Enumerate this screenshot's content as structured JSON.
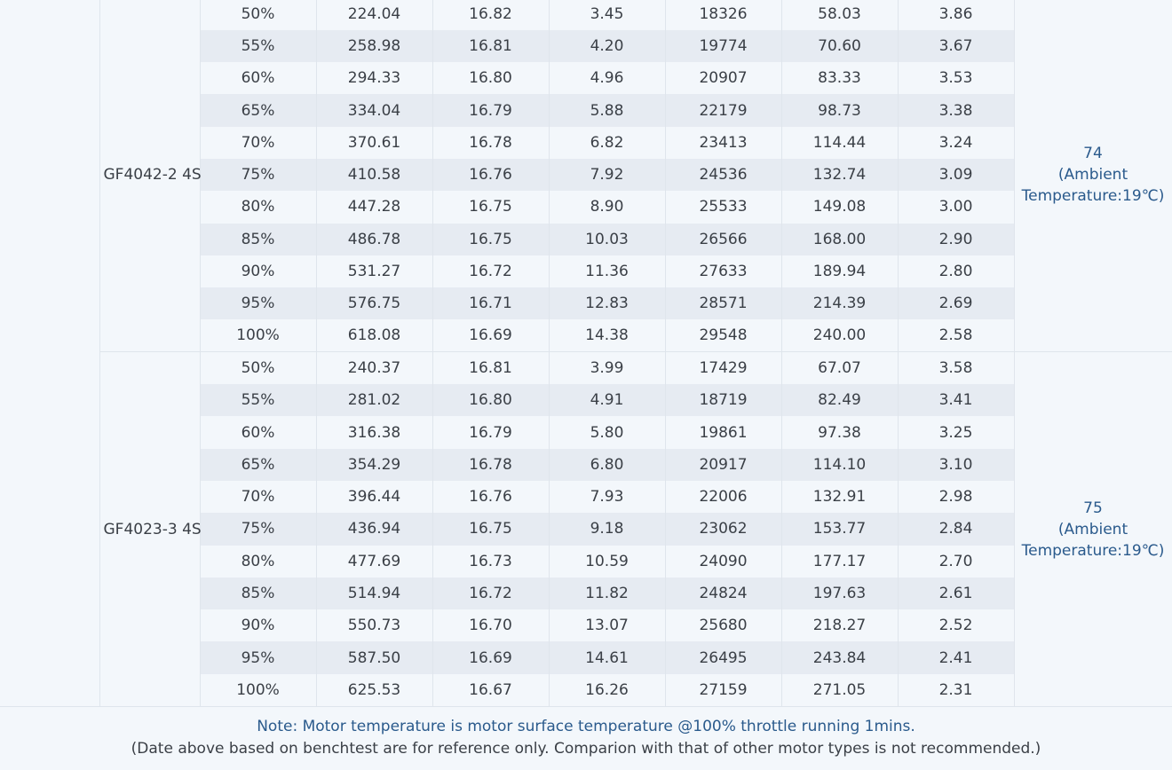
{
  "groups": [
    {
      "model": "GF4042-2  4S",
      "temp_value": "74",
      "temp_note_1": "(Ambient",
      "temp_note_2": "Temperature:19℃)",
      "rows": [
        [
          "50%",
          "224.04",
          "16.82",
          "3.45",
          "18326",
          "58.03",
          "3.86"
        ],
        [
          "55%",
          "258.98",
          "16.81",
          "4.20",
          "19774",
          "70.60",
          "3.67"
        ],
        [
          "60%",
          "294.33",
          "16.80",
          "4.96",
          "20907",
          "83.33",
          "3.53"
        ],
        [
          "65%",
          "334.04",
          "16.79",
          "5.88",
          "22179",
          "98.73",
          "3.38"
        ],
        [
          "70%",
          "370.61",
          "16.78",
          "6.82",
          "23413",
          "114.44",
          "3.24"
        ],
        [
          "75%",
          "410.58",
          "16.76",
          "7.92",
          "24536",
          "132.74",
          "3.09"
        ],
        [
          "80%",
          "447.28",
          "16.75",
          "8.90",
          "25533",
          "149.08",
          "3.00"
        ],
        [
          "85%",
          "486.78",
          "16.75",
          "10.03",
          "26566",
          "168.00",
          "2.90"
        ],
        [
          "90%",
          "531.27",
          "16.72",
          "11.36",
          "27633",
          "189.94",
          "2.80"
        ],
        [
          "95%",
          "576.75",
          "16.71",
          "12.83",
          "28571",
          "214.39",
          "2.69"
        ],
        [
          "100%",
          "618.08",
          "16.69",
          "14.38",
          "29548",
          "240.00",
          "2.58"
        ]
      ]
    },
    {
      "model": "GF4023-3  4S",
      "temp_value": "75",
      "temp_note_1": "(Ambient",
      "temp_note_2": "Temperature:19℃)",
      "rows": [
        [
          "50%",
          "240.37",
          "16.81",
          "3.99",
          "17429",
          "67.07",
          "3.58"
        ],
        [
          "55%",
          "281.02",
          "16.80",
          "4.91",
          "18719",
          "82.49",
          "3.41"
        ],
        [
          "60%",
          "316.38",
          "16.79",
          "5.80",
          "19861",
          "97.38",
          "3.25"
        ],
        [
          "65%",
          "354.29",
          "16.78",
          "6.80",
          "20917",
          "114.10",
          "3.10"
        ],
        [
          "70%",
          "396.44",
          "16.76",
          "7.93",
          "22006",
          "132.91",
          "2.98"
        ],
        [
          "75%",
          "436.94",
          "16.75",
          "9.18",
          "23062",
          "153.77",
          "2.84"
        ],
        [
          "80%",
          "477.69",
          "16.73",
          "10.59",
          "24090",
          "177.17",
          "2.70"
        ],
        [
          "85%",
          "514.94",
          "16.72",
          "11.82",
          "24824",
          "197.63",
          "2.61"
        ],
        [
          "90%",
          "550.73",
          "16.70",
          "13.07",
          "25680",
          "218.27",
          "2.52"
        ],
        [
          "95%",
          "587.50",
          "16.69",
          "14.61",
          "26495",
          "243.84",
          "2.41"
        ],
        [
          "100%",
          "625.53",
          "16.67",
          "16.26",
          "27159",
          "271.05",
          "2.31"
        ]
      ]
    }
  ],
  "notes": {
    "line1": "Note: Motor temperature is motor surface temperature @100% throttle running 1mins.",
    "line2": "(Date above based on benchtest are for reference only. Comparion with that of other motor types is not recommended.)"
  },
  "colors": {
    "background": "#f3f7fb",
    "stripe": "#e6ebf2",
    "accent_text": "#2a5a8c",
    "body_text": "#3a3f46"
  }
}
